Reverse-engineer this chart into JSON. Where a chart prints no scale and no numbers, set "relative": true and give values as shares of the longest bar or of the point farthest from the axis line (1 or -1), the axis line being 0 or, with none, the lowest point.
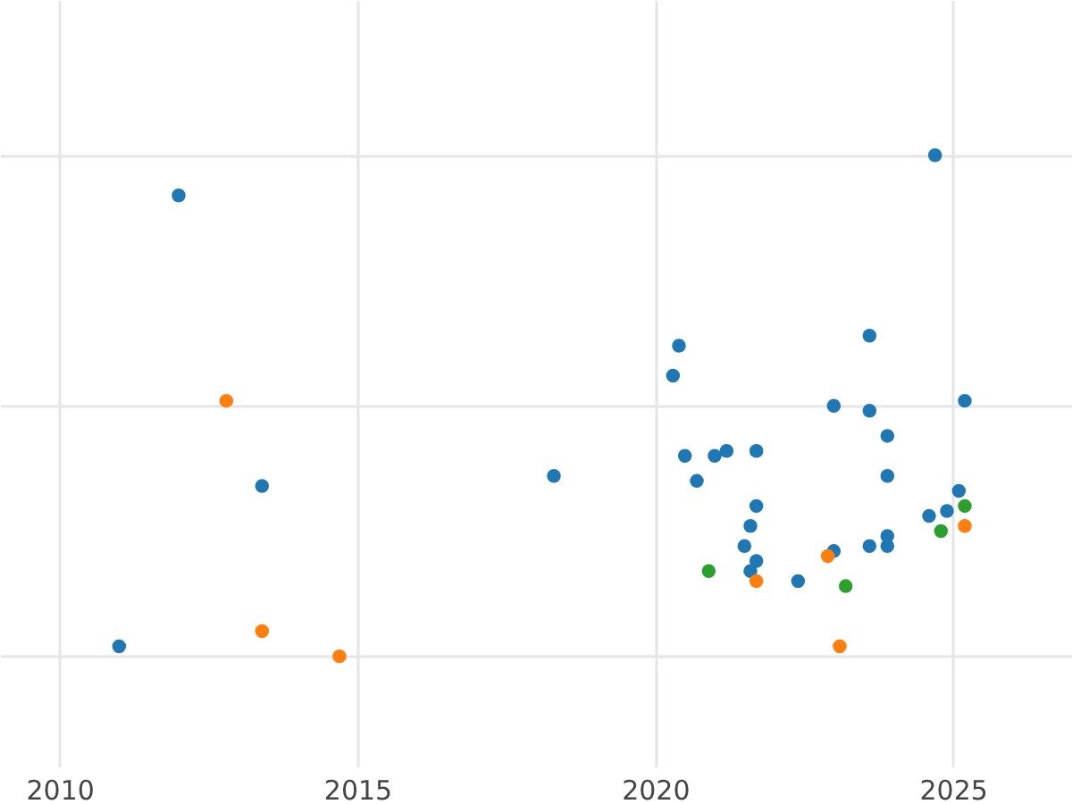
{
  "chart_data": {
    "type": "scatter",
    "relative": true,
    "xlim": [
      2009,
      2027
    ],
    "xticks": [
      2010,
      2015,
      2020,
      2025
    ],
    "grid": true,
    "marker": "circle",
    "series": [
      {
        "color": "#1f77b4",
        "x": [
          2012.0,
          2011.0,
          2013.4,
          2018.3,
          2020.4,
          2020.3,
          2020.5,
          2020.7,
          2021.0,
          2021.2,
          2021.7,
          2021.7,
          2021.6,
          2021.5,
          2021.6,
          2021.7,
          2022.4,
          2023.0,
          2023.0,
          2023.6,
          2023.6,
          2023.6,
          2023.9,
          2023.9,
          2023.9,
          2023.9,
          2024.7,
          2025.2,
          2025.1,
          2024.9,
          2024.6
        ],
        "values": [
          0.92,
          0.02,
          0.34,
          0.36,
          0.62,
          0.56,
          0.4,
          0.35,
          0.4,
          0.41,
          0.41,
          0.3,
          0.26,
          0.22,
          0.17,
          0.19,
          0.15,
          0.5,
          0.21,
          0.64,
          0.49,
          0.22,
          0.44,
          0.36,
          0.24,
          0.22,
          1,
          0.51,
          0.33,
          0.29,
          0.28
        ]
      },
      {
        "color": "#ff7f0e",
        "x": [
          2012.8,
          2013.4,
          2014.7,
          2021.7,
          2022.9,
          2023.1,
          2025.2
        ],
        "values": [
          0.51,
          0.05,
          0,
          0.15,
          0.2,
          0.02,
          0.26
        ]
      },
      {
        "color": "#2ca02c",
        "x": [
          2020.9,
          2023.2,
          2024.8,
          2025.2
        ],
        "values": [
          0.17,
          0.14,
          0.25,
          0.3
        ]
      }
    ]
  }
}
